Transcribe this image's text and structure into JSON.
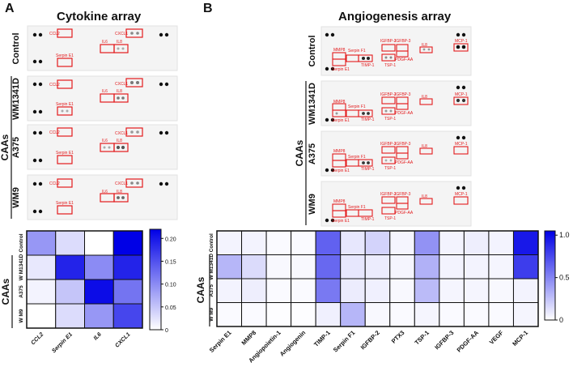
{
  "panel_a": {
    "letter": "A",
    "title": "Cytokine array",
    "row_labels": [
      "Control",
      "WM1341D",
      "A375",
      "WM9"
    ],
    "group_label": "CAAs",
    "spot_labels": {
      "ccl2": "CCL2",
      "serpin_e1": "Serpin E1",
      "cxcl1": "CXCL1",
      "il6": "IL6",
      "il8": "IL8"
    }
  },
  "panel_b": {
    "letter": "B",
    "title": "Angiogenesis array",
    "row_labels": [
      "Control",
      "WM1341D",
      "A375",
      "WM9"
    ],
    "group_label": "CAAs",
    "spot_labels": {
      "mmp8": "MMP8",
      "serpin_e1": "Serpin E1",
      "serpin_f1": "Serpin F1",
      "timp1": "TIMP-1",
      "igfbp2": "IGFBP-2",
      "igfbp3": "IGFBP-3",
      "tsp1": "TSP-1",
      "pdgfaa": "PDGF-AA",
      "il8": "IL8",
      "mcp1": "MCP-1"
    }
  },
  "chart_data": [
    {
      "type": "heatmap",
      "title": "Cytokine array",
      "categories": [
        "CCL2",
        "Serpin E1",
        "IL6",
        "CXCL1"
      ],
      "rows": [
        "Control",
        "W M1341D",
        "A375",
        "W M9"
      ],
      "row_group_label": "CAAs",
      "values": [
        [
          0.09,
          0.03,
          0.0,
          0.22
        ],
        [
          0.02,
          0.19,
          0.1,
          0.19
        ],
        [
          0.01,
          0.05,
          0.21,
          0.12
        ],
        [
          0.0,
          0.03,
          0.09,
          0.16
        ]
      ],
      "colorbar": {
        "min": 0,
        "max": 0.22,
        "ticks": [
          "0.20",
          "0.15",
          "0.10",
          "0.05",
          "0"
        ],
        "tick_values": [
          0.2,
          0.15,
          0.1,
          0.05,
          0
        ],
        "low_color": "#ffffff",
        "high_color": "#0000e6"
      }
    },
    {
      "type": "heatmap",
      "title": "Angiogenesis array",
      "categories": [
        "Serpin E1",
        "MMP8",
        "Angiopoietin-1",
        "Angiogenin",
        "TIMP-1",
        "Serpin F1",
        "IGFBP-2",
        "PTX3",
        "TSP-1",
        "IGFBP-3",
        "PDGF-AA",
        "VEGF",
        "MCP-1"
      ],
      "rows": [
        "Control",
        "W M1341D",
        "A375",
        "W M9"
      ],
      "row_group_label": "CAAs",
      "values": [
        [
          0.05,
          0.05,
          0.02,
          0.02,
          0.65,
          0.1,
          0.18,
          0.04,
          0.45,
          0.05,
          0.07,
          0.05,
          0.95
        ],
        [
          0.3,
          0.15,
          0.03,
          0.03,
          0.62,
          0.1,
          0.08,
          0.04,
          0.32,
          0.05,
          0.05,
          0.04,
          0.8
        ],
        [
          0.05,
          0.07,
          0.02,
          0.02,
          0.55,
          0.08,
          0.06,
          0.03,
          0.28,
          0.04,
          0.04,
          0.03,
          0.05
        ],
        [
          0.02,
          0.02,
          0.01,
          0.01,
          0.06,
          0.3,
          0.03,
          0.02,
          0.04,
          0.02,
          0.02,
          0.02,
          0.04
        ]
      ],
      "colorbar": {
        "min": 0,
        "max": 1.05,
        "ticks": [
          "1.0",
          "0.5",
          "0"
        ],
        "tick_values": [
          1.0,
          0.5,
          0
        ],
        "low_color": "#ffffff",
        "high_color": "#0000e6"
      }
    }
  ]
}
